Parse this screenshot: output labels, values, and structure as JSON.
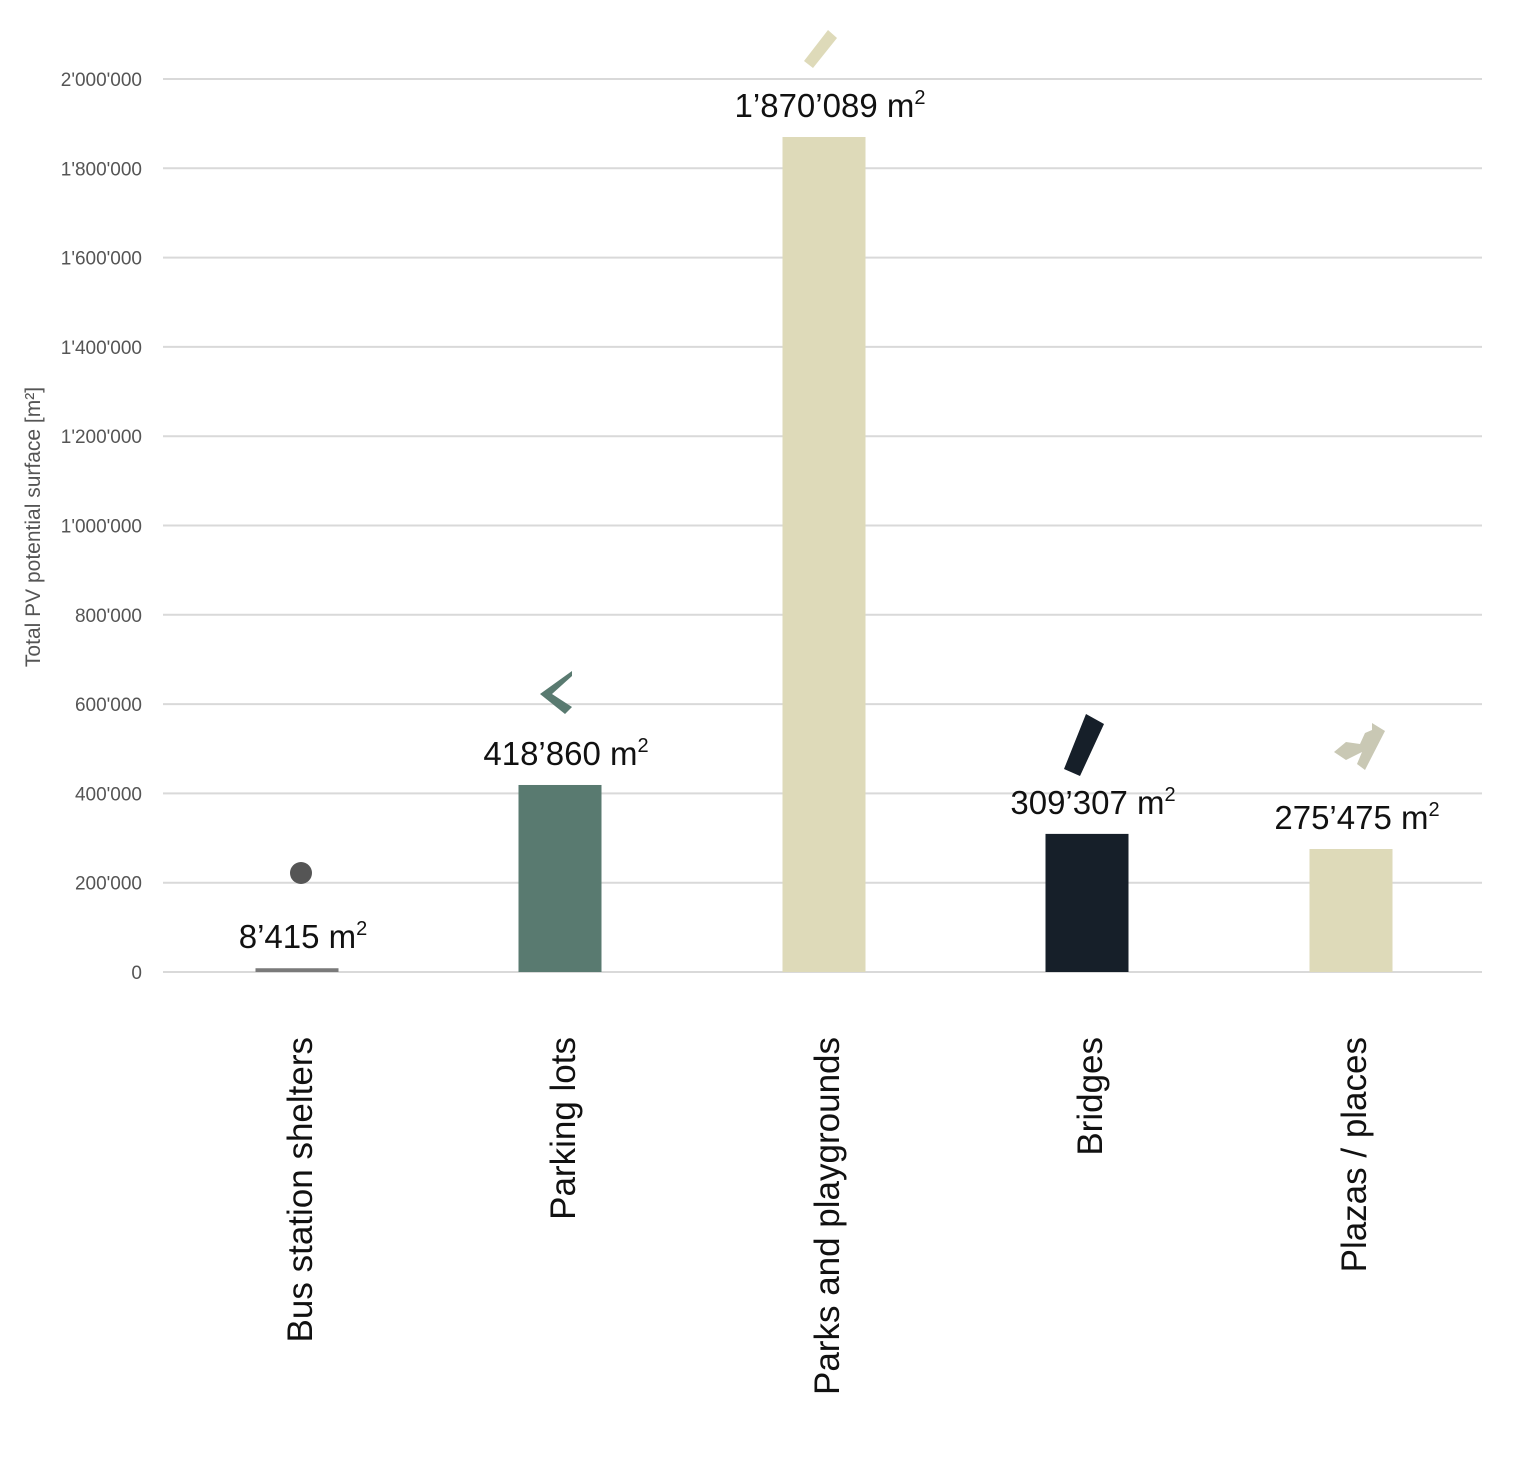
{
  "chart_data": {
    "type": "bar",
    "ylabel": "Total PV potential surface [m²]",
    "ylim": [
      0,
      2000000
    ],
    "yticks": [
      0,
      200000,
      400000,
      600000,
      800000,
      1000000,
      1200000,
      1400000,
      1600000,
      1800000,
      2000000
    ],
    "ytick_labels": [
      "0",
      "200'000",
      "400'000",
      "600'000",
      "800'000",
      "1'000'000",
      "1'200'000",
      "1'400'000",
      "1'600'000",
      "1'800'000",
      "2'000'000"
    ],
    "grid": true,
    "categories": [
      "Bus station shelters",
      "Parking lots",
      "Parks and playgrounds",
      "Bridges",
      "Plazas / places"
    ],
    "values": [
      8415,
      418860,
      1870089,
      309307,
      275475
    ],
    "data_labels": [
      "8’415 m",
      "418’860 m",
      "1’870’089 m",
      "309’307 m",
      "275’475 m"
    ],
    "data_label_superscript": "2",
    "colors": [
      "#7a7a7a",
      "#597a70",
      "#dedab9",
      "#161f29",
      "#dedab9"
    ],
    "icons": [
      "dot-icon",
      "parking-shape-icon",
      "park-shape-icon",
      "bridge-shape-icon",
      "plaza-shape-icon"
    ],
    "icon_colors": [
      "#555555",
      "#597a70",
      "#dedab9",
      "#161f29",
      "#c9c8b4"
    ]
  }
}
